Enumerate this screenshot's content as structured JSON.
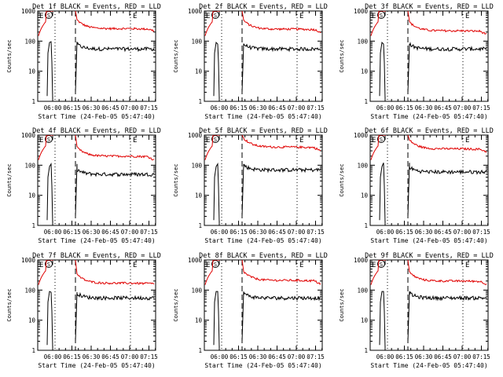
{
  "chart_data": {
    "type": "line",
    "yscale": "log",
    "ylim": [
      1,
      1000
    ],
    "ylabel": "Counts/sec",
    "xlabel": "Start Time (24-Feb-05 05:47:40)",
    "x_tick_labels": [
      "06:00",
      "06:15",
      "06:30",
      "06:45",
      "07:00",
      "07:15"
    ],
    "y_tick_labels": [
      "1",
      "10",
      "100",
      "1000"
    ],
    "legend": "BLACK = Events, RED = LLD",
    "colors": {
      "events": "#000000",
      "lld": "#e00000"
    },
    "markers": {
      "end": "E",
      "start": "S"
    },
    "panels": [
      {
        "title": "Det 1f BLACK = Events, RED = LLD",
        "events_level": 55,
        "lld_level": 260,
        "events_peak": 95,
        "lld_end": 220
      },
      {
        "title": "Det 2f BLACK = Events, RED = LLD",
        "events_level": 55,
        "lld_level": 250,
        "events_peak": 80,
        "lld_end": 200
      },
      {
        "title": "Det 3f BLACK = Events, RED = LLD",
        "events_level": 55,
        "lld_level": 220,
        "events_peak": 80,
        "lld_end": 170
      },
      {
        "title": "Det 4f BLACK = Events, RED = LLD",
        "events_level": 50,
        "lld_level": 200,
        "events_peak": 110,
        "lld_end": 150
      },
      {
        "title": "Det 5f BLACK = Events, RED = LLD",
        "events_level": 70,
        "lld_level": 400,
        "events_peak": 110,
        "lld_end": 300
      },
      {
        "title": "Det 6f BLACK = Events, RED = LLD",
        "events_level": 60,
        "lld_level": 350,
        "events_peak": 120,
        "lld_end": 280
      },
      {
        "title": "Det 7f BLACK = Events, RED = LLD",
        "events_level": 55,
        "lld_level": 170,
        "events_peak": 85,
        "lld_end": 160
      },
      {
        "title": "Det 8f BLACK = Events, RED = LLD",
        "events_level": 55,
        "lld_level": 210,
        "events_peak": 90,
        "lld_end": 160
      },
      {
        "title": "Det 9f BLACK = Events, RED = LLD",
        "events_level": 55,
        "lld_level": 200,
        "events_peak": 90,
        "lld_end": 160
      }
    ]
  }
}
